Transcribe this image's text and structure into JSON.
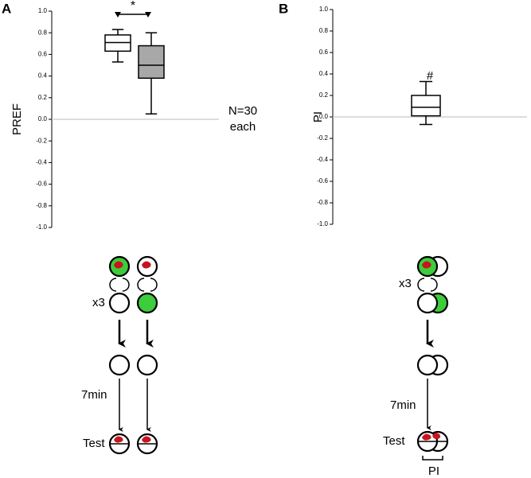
{
  "chart_data": [
    {
      "type": "box",
      "panel_label": "A",
      "ylabel": "PREF",
      "ylim": [
        -1,
        1
      ],
      "yticks": [
        {
          "value": -1,
          "label": "-1.0"
        },
        -0.8,
        -0.6,
        -0.4,
        -0.2,
        {
          "value": 0,
          "label": "0.0"
        },
        0.2,
        0.4,
        0.6,
        0.8,
        {
          "value": 1,
          "label": "1.0"
        }
      ],
      "zero_line": true,
      "boxes": [
        {
          "color": "#ffffff",
          "low": 0.53,
          "q1": 0.63,
          "median": 0.71,
          "q3": 0.78,
          "high": 0.83
        },
        {
          "color": "#a8a8a8",
          "low": 0.05,
          "q1": 0.38,
          "median": 0.5,
          "q3": 0.68,
          "high": 0.8
        }
      ],
      "annotations": [
        "*",
        "N=30",
        "each"
      ]
    },
    {
      "type": "box",
      "panel_label": "B",
      "ylabel": "PI",
      "ylim": [
        -1,
        1
      ],
      "yticks": [
        {
          "value": -1,
          "label": "-1.0"
        },
        -0.8,
        -0.6,
        -0.4,
        -0.2,
        {
          "value": 0,
          "label": "0.0"
        },
        0.2,
        0.4,
        0.6,
        0.8,
        {
          "value": 1,
          "label": "1.0"
        }
      ],
      "zero_line": true,
      "boxes": [
        {
          "color": "#ffffff",
          "low": -0.07,
          "q1": 0.01,
          "median": 0.09,
          "q3": 0.2,
          "high": 0.33
        }
      ],
      "annotations": [
        "#"
      ]
    }
  ],
  "diagram": {
    "A": {
      "repeat": "x3",
      "delay": "7min",
      "test": "Test"
    },
    "B": {
      "repeat": "x3",
      "delay": "7min",
      "test": "Test",
      "index": "PI"
    }
  }
}
